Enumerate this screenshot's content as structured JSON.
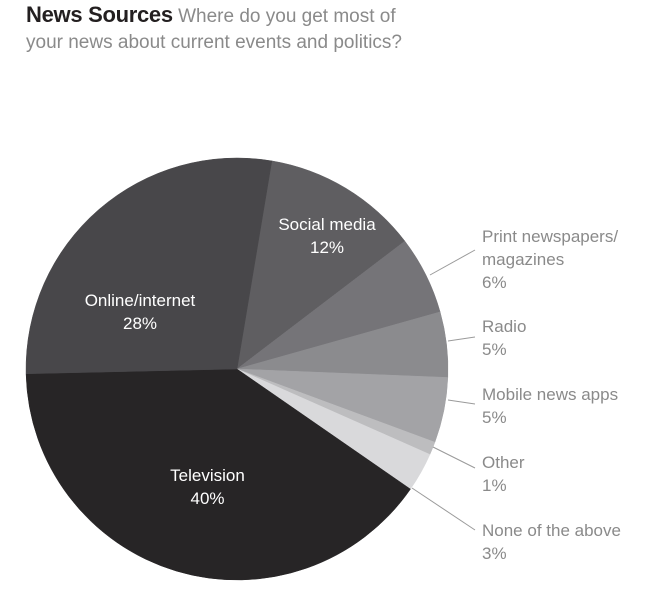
{
  "header": {
    "title": "News Sources",
    "subtitle": "Where do you get most of your news about current events and politics?"
  },
  "chart_data": {
    "type": "pie",
    "title": "News Sources",
    "subtitle": "Where do you get most of your news about current events and politics?",
    "start_angle_deg": 9.5,
    "direction": "clockwise",
    "slices": [
      {
        "label": "Social media",
        "value": 12,
        "display": "12%",
        "color": "#5f5e61",
        "label_position": "inside"
      },
      {
        "label": "Print newspapers/ magazines",
        "value": 6,
        "display": "6%",
        "color": "#757478",
        "label_position": "outside"
      },
      {
        "label": "Radio",
        "value": 5,
        "display": "5%",
        "color": "#8b8b8e",
        "label_position": "outside"
      },
      {
        "label": "Mobile news apps",
        "value": 5,
        "display": "5%",
        "color": "#a3a3a6",
        "label_position": "outside"
      },
      {
        "label": "Other",
        "value": 1,
        "display": "1%",
        "color": "#bdbdbf",
        "label_position": "outside"
      },
      {
        "label": "None of the above",
        "value": 3,
        "display": "3%",
        "color": "#d9d9db",
        "label_position": "outside"
      },
      {
        "label": "Television",
        "value": 40,
        "display": "40%",
        "color": "#272526",
        "label_position": "inside"
      },
      {
        "label": "Online/internet",
        "value": 28,
        "display": "28%",
        "color": "#48474a",
        "label_position": "inside"
      }
    ]
  },
  "labels": {
    "social": {
      "name": "Social media",
      "pct": "12%"
    },
    "online": {
      "name": "Online/internet",
      "pct": "28%"
    },
    "tv": {
      "name": "Television",
      "pct": "40%"
    },
    "print": {
      "name1": "Print newspapers/",
      "name2": "magazines",
      "pct": "6%"
    },
    "radio": {
      "name": "Radio",
      "pct": "5%"
    },
    "mobile": {
      "name": "Mobile news apps",
      "pct": "5%"
    },
    "other": {
      "name": "Other",
      "pct": "1%"
    },
    "none": {
      "name": "None of the above",
      "pct": "3%"
    }
  }
}
